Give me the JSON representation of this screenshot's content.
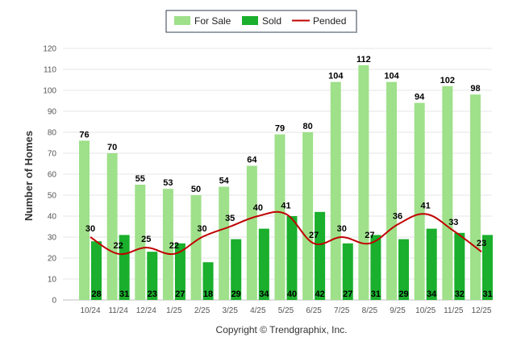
{
  "chart_data": {
    "type": "bar",
    "categories": [
      "10/24",
      "11/24",
      "12/24",
      "1/25",
      "2/25",
      "3/25",
      "4/25",
      "5/25",
      "6/25",
      "7/25",
      "8/25",
      "9/25",
      "10/25",
      "11/25",
      "12/25"
    ],
    "series": [
      {
        "name": "For Sale",
        "type": "bar",
        "color": "#9fe08a",
        "values": [
          76,
          70,
          55,
          53,
          50,
          54,
          64,
          79,
          80,
          104,
          112,
          104,
          94,
          102,
          98
        ]
      },
      {
        "name": "Sold",
        "type": "bar",
        "color": "#1aaf2c",
        "values": [
          28,
          31,
          23,
          27,
          18,
          29,
          34,
          40,
          42,
          27,
          31,
          29,
          34,
          32,
          31
        ]
      },
      {
        "name": "Pended",
        "type": "line",
        "color": "#c00000",
        "values": [
          30,
          22,
          25,
          22,
          30,
          35,
          40,
          41,
          27,
          30,
          27,
          36,
          41,
          33,
          23
        ]
      }
    ],
    "ylabel": "Number of Homes",
    "xlabel": "",
    "ylim": [
      0,
      120
    ],
    "yticks": [
      0,
      10,
      20,
      30,
      40,
      50,
      60,
      70,
      80,
      90,
      100,
      110,
      120
    ],
    "grid": true,
    "legend_position": "top-center"
  },
  "footer": "Copyright © Trendgraphix, Inc."
}
